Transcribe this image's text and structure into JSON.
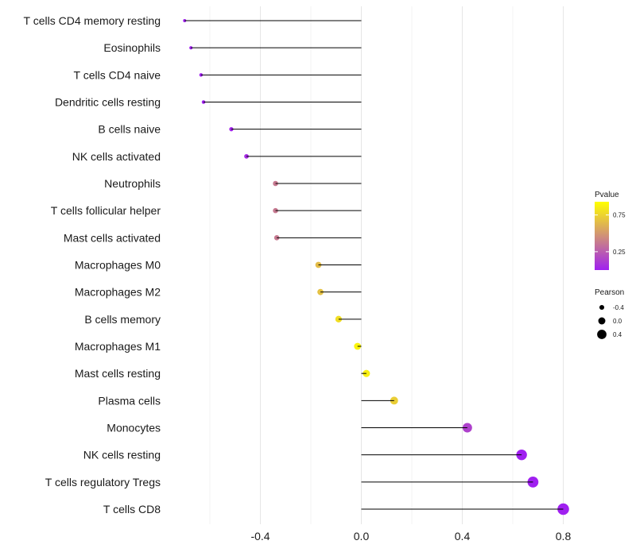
{
  "chart_data": {
    "type": "lollipop",
    "title": "",
    "xlabel": "",
    "ylabel": "",
    "xlim": [
      -0.72,
      0.82
    ],
    "x_ticks": [
      -0.4,
      0.0,
      0.4,
      0.8
    ],
    "x_tick_labels": [
      "-0.4",
      "0.0",
      "0.4",
      "0.8"
    ],
    "grid": true,
    "categories": [
      "T cells CD4 memory resting",
      "Eosinophils",
      "T cells CD4 naive",
      "Dendritic cells resting",
      "B cells naive",
      "NK cells activated",
      "Neutrophils",
      "T cells follicular helper",
      "Mast cells activated",
      "Macrophages M0",
      "Macrophages M2",
      "B cells memory",
      "Macrophages M1",
      "Mast cells resting",
      "Plasma cells",
      "Monocytes",
      "NK cells resting",
      "T cells regulatory  Tregs",
      "T cells CD8"
    ],
    "pearson": [
      -0.7,
      -0.675,
      -0.635,
      -0.625,
      -0.515,
      -0.455,
      -0.34,
      -0.34,
      -0.335,
      -0.17,
      -0.162,
      -0.09,
      -0.015,
      0.02,
      0.13,
      0.42,
      0.635,
      0.68,
      0.8
    ],
    "pvalue": [
      0.0005,
      0.0008,
      0.0015,
      0.002,
      0.02,
      0.05,
      0.4,
      0.4,
      0.4,
      0.7,
      0.72,
      0.85,
      0.95,
      0.93,
      0.78,
      0.15,
      0.0,
      0.0,
      0.0
    ],
    "legend": {
      "placement": "right",
      "color_title": "Pvalue",
      "color_ticks": [
        0.25,
        0.75
      ],
      "color_tick_labels": [
        "0.25",
        "0.75"
      ],
      "color_low": "#a020f0",
      "color_high": "#ffff00",
      "size_title": "Pearson",
      "size_values": [
        -0.4,
        0.0,
        0.4
      ],
      "size_labels": [
        "-0.4",
        "0.0",
        "0.4"
      ]
    }
  }
}
